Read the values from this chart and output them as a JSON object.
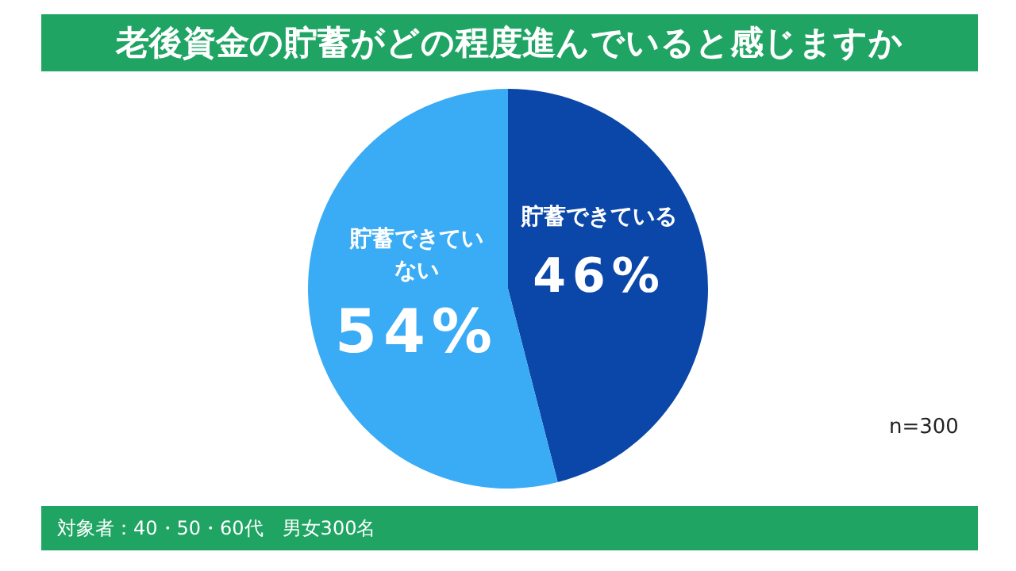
{
  "chart_data": {
    "type": "pie",
    "title": "老後資金の貯蓄がどの程度進んでいると感じますか",
    "categories": [
      "貯蓄できている",
      "貯蓄できていない"
    ],
    "values": [
      46,
      54
    ],
    "colors": [
      "#0b47a8",
      "#3aabf5"
    ],
    "value_labels": [
      "46%",
      "54%"
    ],
    "annotations": [
      "n=300",
      "対象者：40・50・60代　男女300名"
    ]
  }
}
